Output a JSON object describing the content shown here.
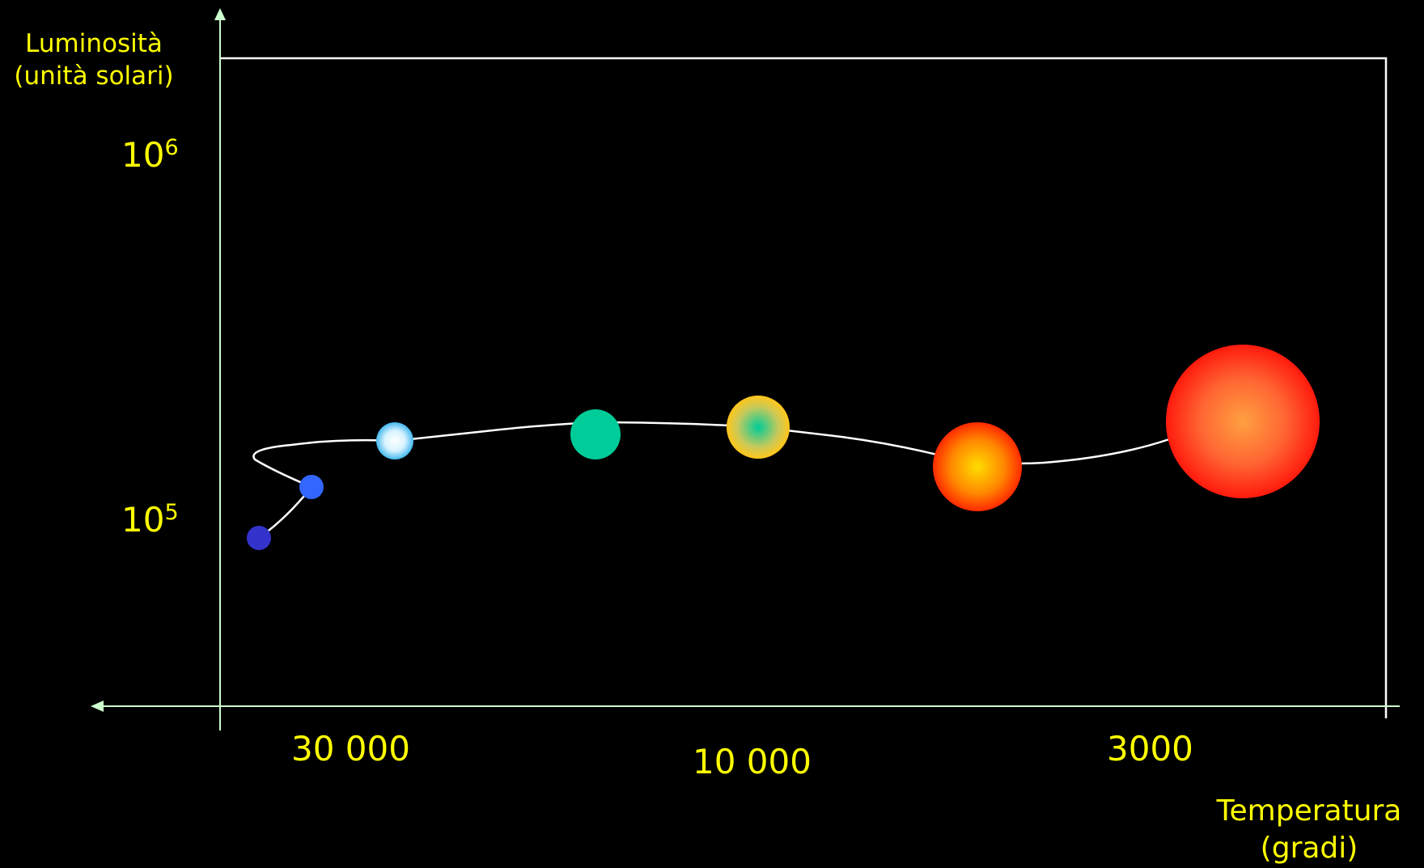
{
  "y_axis": {
    "title_line1": "Luminosità",
    "title_line2": "(unità solari)",
    "ticks": [
      {
        "base": "10",
        "exp": "6"
      },
      {
        "base": "10",
        "exp": "5"
      }
    ]
  },
  "x_axis": {
    "title_line1": "Temperatura",
    "title_line2": "(gradi)",
    "ticks": [
      "30 000",
      "10 000",
      "3000"
    ]
  },
  "colors": {
    "background": "#000000",
    "text": "#ffff00",
    "axis": "#ccffcc",
    "frame": "#ffffff",
    "track": "#ffffff"
  },
  "stars": [
    {
      "name": "dark-blue-star",
      "color": "#3333cc"
    },
    {
      "name": "blue-star",
      "color": "#3366ff"
    },
    {
      "name": "blue-white-star",
      "color": "#ccf0ff"
    },
    {
      "name": "teal-star",
      "color": "#00cc99"
    },
    {
      "name": "yellow-star",
      "color": "#f2c230"
    },
    {
      "name": "orange-star",
      "color": "#ff6600"
    },
    {
      "name": "red-supergiant-star",
      "color": "#ff2a1a"
    }
  ]
}
